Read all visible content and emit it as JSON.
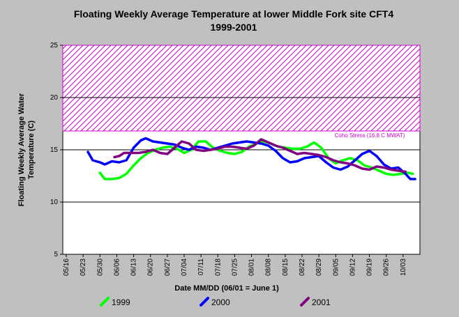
{
  "chart_data": {
    "type": "line",
    "title": "Floating Weekly Average Temperature at lower Middle Fork site CFT4",
    "subtitle": "1999-2001",
    "xlabel": "Date MM/DD (06/01 = June 1)",
    "ylabel_line1": "Floating Weekly Average Water",
    "ylabel_line2": "Temperature (C)",
    "ylim": [
      5,
      25
    ],
    "yticks": [
      "5",
      "10",
      "15",
      "20",
      "25"
    ],
    "xlim": [
      "05/16",
      "10/10"
    ],
    "categories": [
      "05/16",
      "05/23",
      "05/30",
      "06/06",
      "06/13",
      "06/20",
      "06/27",
      "07/04",
      "07/11",
      "07/18",
      "07/25",
      "08/01",
      "08/08",
      "08/15",
      "08/22",
      "08/29",
      "09/05",
      "09/12",
      "09/19",
      "09/26",
      "10/03"
    ],
    "grid": "horizontal",
    "legend_position": "bottom",
    "threshold": {
      "label": "Coho Stress (16.8 C MWAT)",
      "lower": 16.8,
      "upper": 25,
      "color": "#cc00cc"
    },
    "series": [
      {
        "name": "1999",
        "color": "#00ff00",
        "points": [
          [
            "05/30",
            12.8
          ],
          [
            "06/01",
            12.2
          ],
          [
            "06/04",
            12.2
          ],
          [
            "06/07",
            12.3
          ],
          [
            "06/10",
            12.7
          ],
          [
            "06/13",
            13.5
          ],
          [
            "06/16",
            14.2
          ],
          [
            "06/19",
            14.7
          ],
          [
            "06/22",
            15.0
          ],
          [
            "06/25",
            15.2
          ],
          [
            "06/28",
            15.3
          ],
          [
            "07/01",
            15.1
          ],
          [
            "07/04",
            14.7
          ],
          [
            "07/07",
            15.0
          ],
          [
            "07/10",
            15.8
          ],
          [
            "07/13",
            15.8
          ],
          [
            "07/16",
            15.2
          ],
          [
            "07/19",
            14.9
          ],
          [
            "07/22",
            14.7
          ],
          [
            "07/25",
            14.6
          ],
          [
            "07/28",
            14.8
          ],
          [
            "07/31",
            15.3
          ],
          [
            "08/03",
            15.6
          ],
          [
            "08/06",
            15.8
          ],
          [
            "08/09",
            15.6
          ],
          [
            "08/12",
            15.3
          ],
          [
            "08/15",
            15.2
          ],
          [
            "08/18",
            15.1
          ],
          [
            "08/21",
            15.1
          ],
          [
            "08/24",
            15.3
          ],
          [
            "08/27",
            15.7
          ],
          [
            "08/30",
            15.2
          ],
          [
            "09/02",
            14.2
          ],
          [
            "09/05",
            13.7
          ],
          [
            "09/08",
            14.0
          ],
          [
            "09/11",
            14.2
          ],
          [
            "09/14",
            14.0
          ],
          [
            "09/17",
            13.5
          ],
          [
            "09/20",
            13.3
          ],
          [
            "09/23",
            13.0
          ],
          [
            "09/26",
            12.7
          ],
          [
            "09/29",
            12.6
          ],
          [
            "10/02",
            12.7
          ],
          [
            "10/05",
            12.8
          ],
          [
            "10/07",
            12.7
          ]
        ]
      },
      {
        "name": "2000",
        "color": "#0000ff",
        "points": [
          [
            "05/25",
            14.8
          ],
          [
            "05/27",
            14.0
          ],
          [
            "05/30",
            13.8
          ],
          [
            "06/01",
            13.6
          ],
          [
            "06/04",
            13.9
          ],
          [
            "06/07",
            13.8
          ],
          [
            "06/10",
            14.0
          ],
          [
            "06/13",
            15.2
          ],
          [
            "06/16",
            15.9
          ],
          [
            "06/18",
            16.1
          ],
          [
            "06/21",
            15.8
          ],
          [
            "06/24",
            15.7
          ],
          [
            "06/27",
            15.6
          ],
          [
            "06/30",
            15.5
          ],
          [
            "07/03",
            15.2
          ],
          [
            "07/06",
            15.0
          ],
          [
            "07/09",
            15.3
          ],
          [
            "07/12",
            15.2
          ],
          [
            "07/15",
            15.0
          ],
          [
            "07/18",
            15.2
          ],
          [
            "07/21",
            15.4
          ],
          [
            "07/24",
            15.6
          ],
          [
            "07/27",
            15.7
          ],
          [
            "07/30",
            15.8
          ],
          [
            "08/02",
            15.7
          ],
          [
            "08/05",
            15.6
          ],
          [
            "08/08",
            15.4
          ],
          [
            "08/11",
            14.9
          ],
          [
            "08/14",
            14.2
          ],
          [
            "08/17",
            13.8
          ],
          [
            "08/20",
            13.9
          ],
          [
            "08/23",
            14.2
          ],
          [
            "08/26",
            14.3
          ],
          [
            "08/29",
            14.4
          ],
          [
            "09/01",
            13.8
          ],
          [
            "09/04",
            13.3
          ],
          [
            "09/07",
            13.1
          ],
          [
            "09/10",
            13.4
          ],
          [
            "09/13",
            14.0
          ],
          [
            "09/16",
            14.6
          ],
          [
            "09/19",
            14.9
          ],
          [
            "09/22",
            14.4
          ],
          [
            "09/25",
            13.6
          ],
          [
            "09/28",
            13.2
          ],
          [
            "10/01",
            13.3
          ],
          [
            "10/04",
            12.7
          ],
          [
            "10/06",
            12.2
          ],
          [
            "10/08",
            12.2
          ]
        ]
      },
      {
        "name": "2001",
        "color": "#800080",
        "points": [
          [
            "06/05",
            14.3
          ],
          [
            "06/07",
            14.4
          ],
          [
            "06/09",
            14.7
          ],
          [
            "06/12",
            14.7
          ],
          [
            "06/15",
            14.7
          ],
          [
            "06/18",
            14.8
          ],
          [
            "06/21",
            15.0
          ],
          [
            "06/24",
            14.7
          ],
          [
            "06/27",
            14.6
          ],
          [
            "06/30",
            15.2
          ],
          [
            "07/03",
            15.8
          ],
          [
            "07/06",
            15.6
          ],
          [
            "07/09",
            15.0
          ],
          [
            "07/12",
            14.9
          ],
          [
            "07/15",
            15.0
          ],
          [
            "07/18",
            15.1
          ],
          [
            "07/21",
            15.3
          ],
          [
            "07/24",
            15.3
          ],
          [
            "07/27",
            15.2
          ],
          [
            "07/30",
            15.1
          ],
          [
            "08/02",
            15.4
          ],
          [
            "08/05",
            16.0
          ],
          [
            "08/08",
            15.7
          ],
          [
            "08/11",
            15.4
          ],
          [
            "08/14",
            15.2
          ],
          [
            "08/17",
            14.9
          ],
          [
            "08/20",
            14.6
          ],
          [
            "08/23",
            14.7
          ],
          [
            "08/26",
            14.6
          ],
          [
            "08/29",
            14.5
          ],
          [
            "09/01",
            14.3
          ],
          [
            "09/04",
            14.0
          ],
          [
            "09/07",
            13.8
          ],
          [
            "09/10",
            13.7
          ],
          [
            "09/13",
            13.5
          ],
          [
            "09/16",
            13.2
          ],
          [
            "09/19",
            13.1
          ],
          [
            "09/22",
            13.4
          ],
          [
            "09/25",
            13.3
          ],
          [
            "09/28",
            13.1
          ],
          [
            "10/01",
            13.0
          ],
          [
            "10/04",
            12.9
          ]
        ]
      }
    ]
  }
}
